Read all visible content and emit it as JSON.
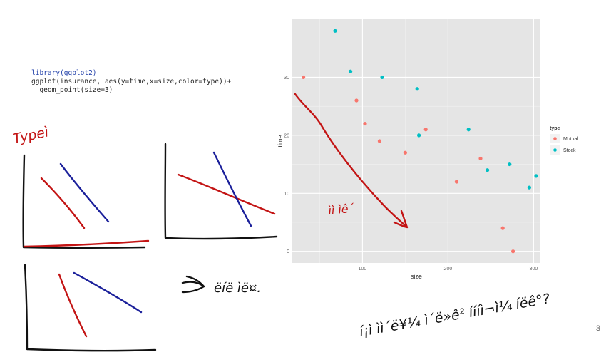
{
  "code": {
    "line1": "library(ggplot2)",
    "line2": "ggplot(insurance, aes(y=time,x=size,color=type))+",
    "line3": "  geom_point(size=3)"
  },
  "slide_number": "3",
  "annotations": {
    "typeby": "Typeì",
    "arrow_note": "ìì ìê´",
    "appear": "ëíë  ìë¤.",
    "question": "í¡ì ìì´ë¥¼ ì´ë»ê² íííì¬ì¼ íëê°?"
  },
  "chart_data": {
    "type": "scatter",
    "xlabel": "size",
    "ylabel": "time",
    "xlim": [
      18,
      308
    ],
    "ylim": [
      -2,
      40
    ],
    "xticks": [
      100,
      200,
      300
    ],
    "yticks": [
      0,
      10,
      20,
      30
    ],
    "grid": true,
    "legend": {
      "title": "type",
      "placement": "right"
    },
    "series": [
      {
        "name": "Mutual",
        "color": "#F8766D",
        "points": [
          [
            31,
            30
          ],
          [
            93,
            26
          ],
          [
            103,
            22
          ],
          [
            120,
            19
          ],
          [
            150,
            17
          ],
          [
            174,
            21
          ],
          [
            210,
            12
          ],
          [
            238,
            16
          ],
          [
            276,
            0
          ],
          [
            264,
            4
          ]
        ]
      },
      {
        "name": "Stock",
        "color": "#00BFC4",
        "points": [
          [
            68,
            38
          ],
          [
            86,
            31
          ],
          [
            123,
            30
          ],
          [
            164,
            28
          ],
          [
            166,
            20
          ],
          [
            224,
            21
          ],
          [
            246,
            14
          ],
          [
            272,
            15
          ],
          [
            295,
            11
          ],
          [
            303,
            13
          ]
        ]
      }
    ]
  }
}
